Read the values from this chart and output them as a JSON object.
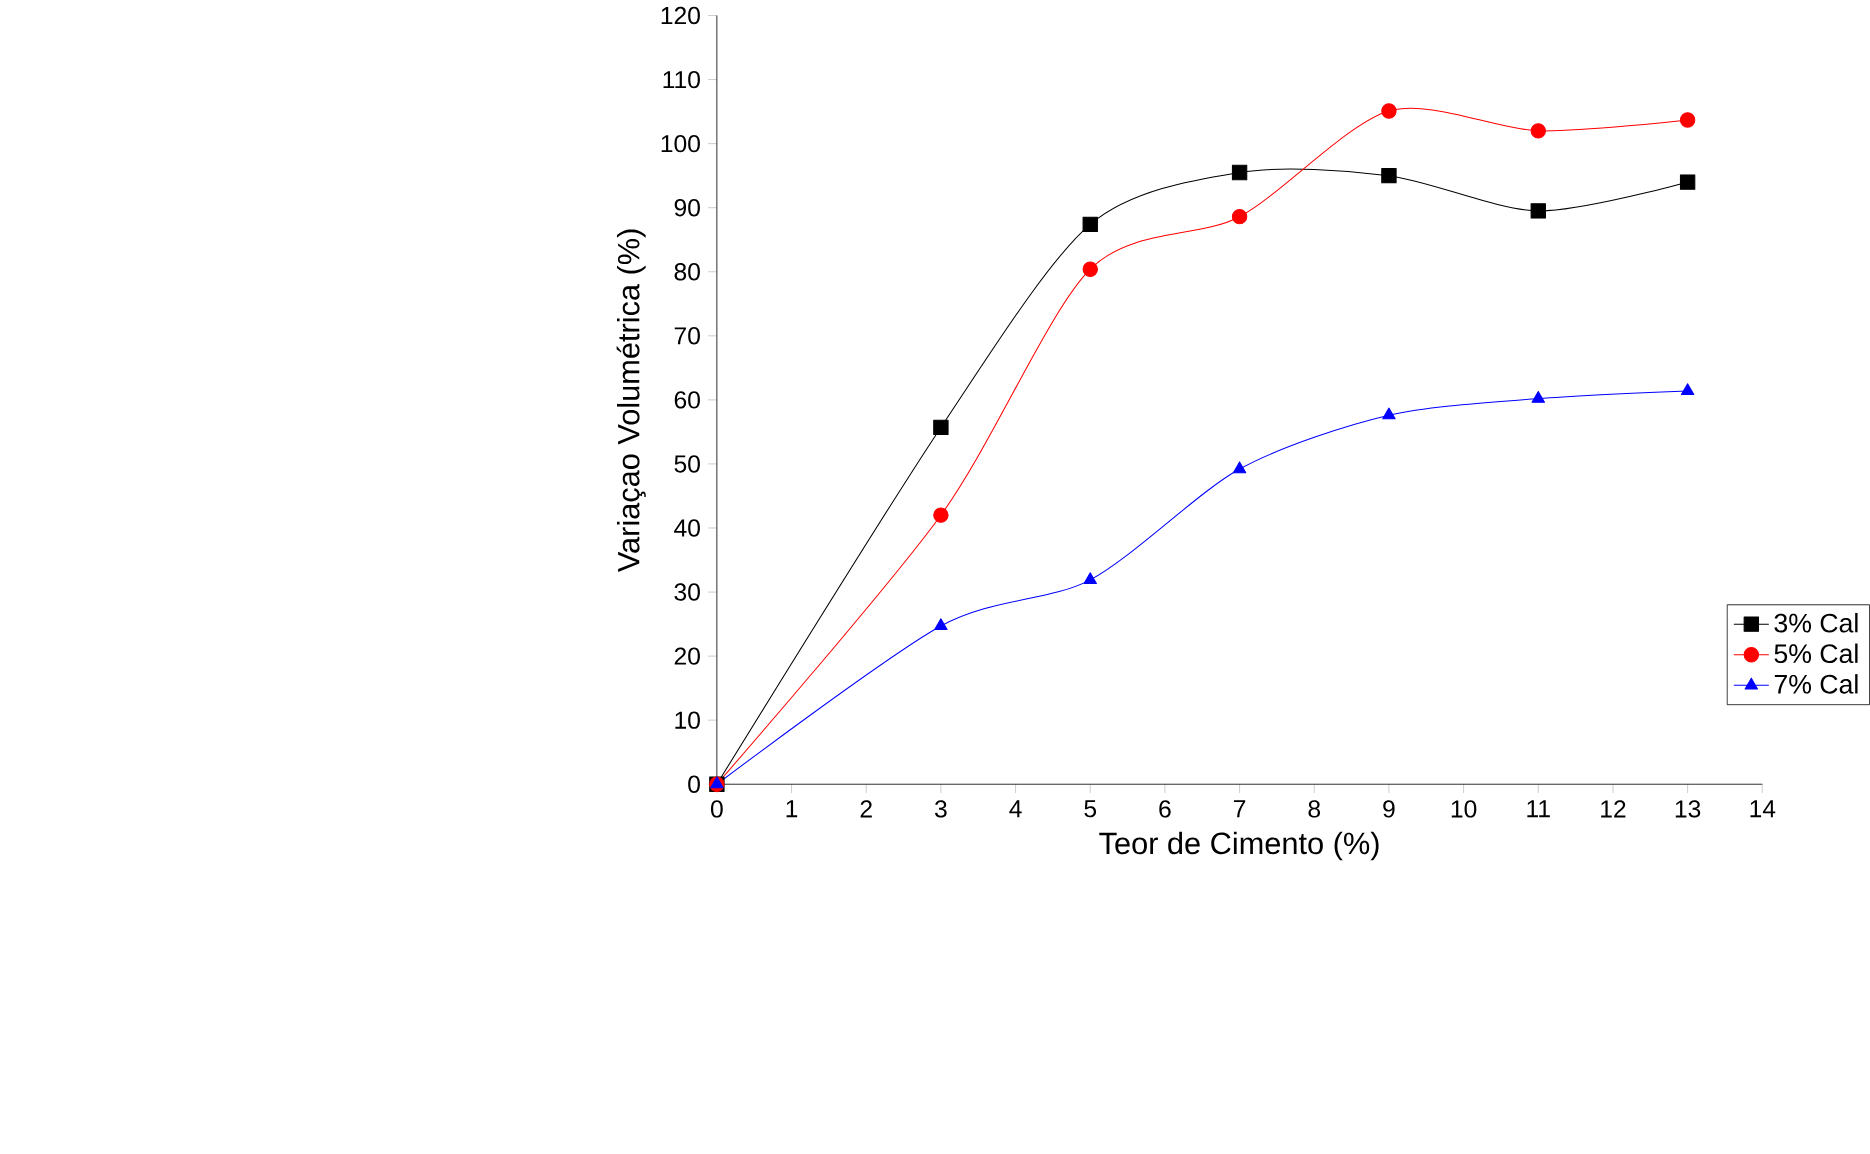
{
  "chart_data": {
    "type": "line",
    "xlabel": "Teor de Cimento (%)",
    "ylabel": "Variaçao Volumétrica (%)",
    "x": [
      0,
      3,
      5,
      7,
      9,
      11,
      13
    ],
    "series": [
      {
        "name": "3% Cal",
        "color": "#000000",
        "marker": "square",
        "values": [
          0,
          55.7,
          87.4,
          95.5,
          95,
          89.5,
          94
        ]
      },
      {
        "name": "5% Cal",
        "color": "#ff0000",
        "marker": "circle",
        "values": [
          0,
          42,
          80.4,
          88.6,
          105.1,
          102,
          103.7
        ]
      },
      {
        "name": "7% Cal",
        "color": "#0000ff",
        "marker": "triangle",
        "values": [
          0,
          24.7,
          31.9,
          49.2,
          57.6,
          60.2,
          61.4
        ]
      }
    ],
    "xlim": [
      0,
      14
    ],
    "xticks": [
      0,
      1,
      2,
      3,
      4,
      5,
      6,
      7,
      8,
      9,
      10,
      11,
      12,
      13,
      14
    ],
    "ylim": [
      0,
      120
    ],
    "yticks": [
      0,
      10,
      20,
      30,
      40,
      50,
      60,
      70,
      80,
      90,
      100,
      110,
      120
    ],
    "legend": "right",
    "grid": false,
    "line_style": "solid"
  }
}
